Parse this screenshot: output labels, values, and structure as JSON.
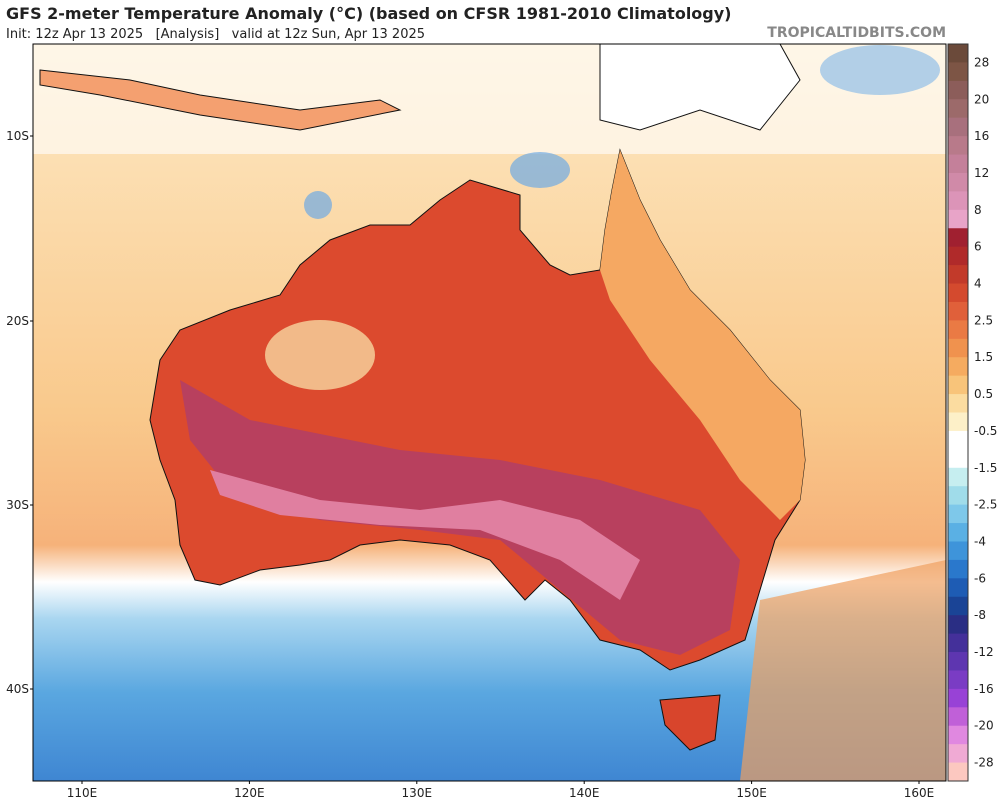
{
  "header": {
    "title": "GFS 2-meter Temperature Anomaly (°C) (based on CFSR 1981-2010 Climatology)",
    "subtitle": "Init: 12z Apr 13 2025   [Analysis]   valid at 12z Sun, Apr 13 2025",
    "brand": "TROPICALTIDBITS.COM"
  },
  "map": {
    "lat_labels": [
      "10S",
      "20S",
      "30S",
      "40S"
    ],
    "lon_labels": [
      "110E",
      "120E",
      "130E",
      "140E",
      "150E",
      "160E"
    ]
  },
  "colorbar": {
    "labels": [
      28,
      20,
      16,
      12,
      8,
      6,
      4,
      2.5,
      1.5,
      0.5,
      -0.5,
      -1.5,
      -2.5,
      -4,
      -6,
      -8,
      -12,
      -16,
      -20,
      -28
    ]
  }
}
